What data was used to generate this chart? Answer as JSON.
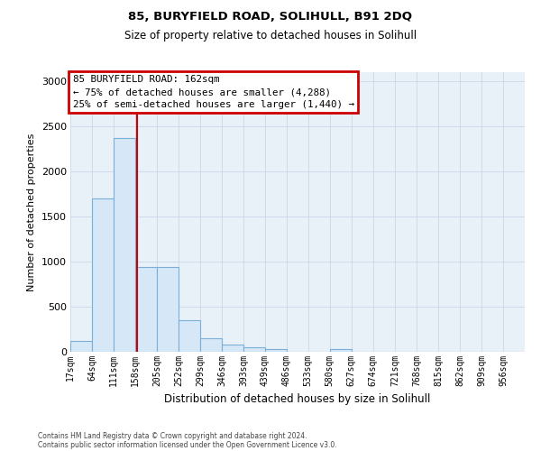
{
  "title1": "85, BURYFIELD ROAD, SOLIHULL, B91 2DQ",
  "title2": "Size of property relative to detached houses in Solihull",
  "xlabel": "Distribution of detached houses by size in Solihull",
  "ylabel": "Number of detached properties",
  "bin_labels": [
    "17sqm",
    "64sqm",
    "111sqm",
    "158sqm",
    "205sqm",
    "252sqm",
    "299sqm",
    "346sqm",
    "393sqm",
    "439sqm",
    "486sqm",
    "533sqm",
    "580sqm",
    "627sqm",
    "674sqm",
    "721sqm",
    "768sqm",
    "815sqm",
    "862sqm",
    "909sqm",
    "956sqm"
  ],
  "bin_edges": [
    17,
    64,
    111,
    158,
    205,
    252,
    299,
    346,
    393,
    439,
    486,
    533,
    580,
    627,
    674,
    721,
    768,
    815,
    862,
    909,
    956,
    1003
  ],
  "bar_values": [
    120,
    1700,
    2370,
    940,
    940,
    350,
    155,
    80,
    55,
    30,
    0,
    0,
    30,
    0,
    0,
    0,
    0,
    0,
    0,
    0,
    0
  ],
  "bar_color": "#d6e8f7",
  "bar_edge_color": "#7ab0d8",
  "property_size": 162,
  "highlight_line_color": "#cc0000",
  "annotation_line1": "85 BURYFIELD ROAD: 162sqm",
  "annotation_line2": "← 75% of detached houses are smaller (4,288)",
  "annotation_line3": "25% of semi-detached houses are larger (1,440) →",
  "annotation_box_facecolor": "#ffffff",
  "annotation_box_edgecolor": "#cc0000",
  "ylim": [
    0,
    3100
  ],
  "yticks": [
    0,
    500,
    1000,
    1500,
    2000,
    2500,
    3000
  ],
  "grid_color": "#c8d8e8",
  "bg_color": "#e8f0f8",
  "footer1": "Contains HM Land Registry data © Crown copyright and database right 2024.",
  "footer2": "Contains public sector information licensed under the Open Government Licence v3.0."
}
